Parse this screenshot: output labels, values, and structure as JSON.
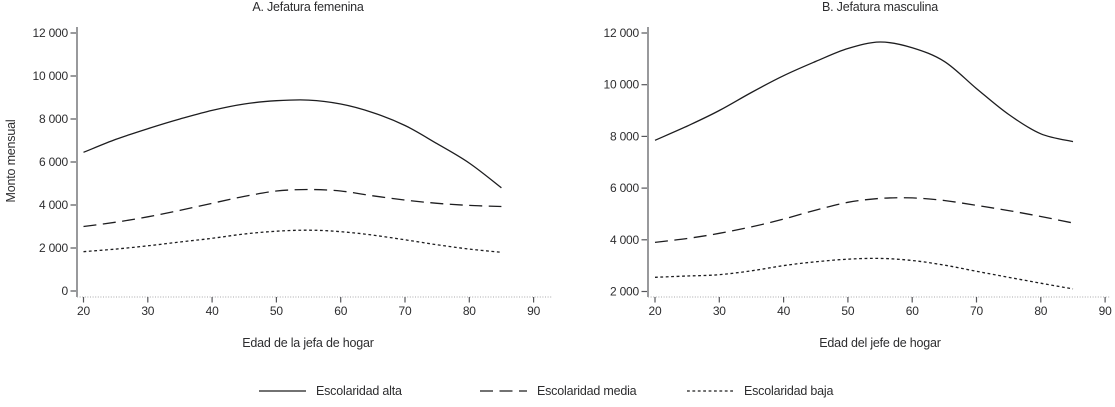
{
  "page": {
    "background": "#ffffff",
    "text_color": "#2d2d2f",
    "line_color": "#1d1d1f",
    "axis_color": "#55565a"
  },
  "chart_data": [
    {
      "type": "line",
      "title": "A. Jefatura femenina",
      "xlabel": "Edad de la jefa de hogar",
      "ylabel": "Monto mensual",
      "xlim": [
        20,
        90
      ],
      "x_ticks": [
        20,
        30,
        40,
        50,
        60,
        70,
        80,
        90
      ],
      "ylim": [
        0,
        12300
      ],
      "y_ticks": [
        0,
        2000,
        4000,
        6000,
        8000,
        10000,
        12000
      ],
      "y_tick_labels": [
        "0",
        "2 000",
        "4 000",
        "6 000",
        "8 000",
        "10 000",
        "12 000"
      ],
      "grid": false,
      "x": [
        20,
        25,
        30,
        35,
        40,
        45,
        50,
        55,
        60,
        65,
        70,
        75,
        80,
        85
      ],
      "series": [
        {
          "name": "Escolaridad alta",
          "style": "solid",
          "values": [
            6450,
            7050,
            7550,
            8000,
            8400,
            8700,
            8850,
            8880,
            8700,
            8300,
            7700,
            6850,
            5950,
            4800
          ]
        },
        {
          "name": "Escolaridad media",
          "style": "long-dash",
          "values": [
            3000,
            3200,
            3450,
            3750,
            4080,
            4400,
            4650,
            4720,
            4650,
            4430,
            4230,
            4080,
            3980,
            3930
          ]
        },
        {
          "name": "Escolaridad baja",
          "style": "short-dash",
          "values": [
            1830,
            1950,
            2100,
            2280,
            2450,
            2650,
            2780,
            2830,
            2760,
            2600,
            2380,
            2150,
            1950,
            1800
          ]
        }
      ]
    },
    {
      "type": "line",
      "title": "B. Jefatura masculina",
      "xlabel": "Edad del jefe de hogar",
      "ylabel": "",
      "xlim": [
        20,
        90
      ],
      "x_ticks": [
        20,
        30,
        40,
        50,
        60,
        70,
        80,
        90
      ],
      "ylim": [
        2000,
        12300
      ],
      "y_ticks": [
        2000,
        4000,
        6000,
        8000,
        10000,
        12000
      ],
      "y_tick_labels": [
        "2 000",
        "4 000",
        "6 000",
        "8 000",
        "10 000",
        "12 000"
      ],
      "grid": false,
      "x": [
        20,
        25,
        30,
        35,
        40,
        45,
        50,
        55,
        60,
        65,
        70,
        75,
        80,
        85
      ],
      "series": [
        {
          "name": "Escolaridad alta",
          "style": "solid",
          "values": [
            7850,
            8400,
            9000,
            9700,
            10350,
            10900,
            11400,
            11650,
            11430,
            10900,
            9850,
            8850,
            8100,
            7800
          ]
        },
        {
          "name": "Escolaridad media",
          "style": "long-dash",
          "values": [
            3900,
            4050,
            4250,
            4500,
            4800,
            5150,
            5450,
            5600,
            5620,
            5520,
            5330,
            5130,
            4900,
            4650
          ]
        },
        {
          "name": "Escolaridad baja",
          "style": "short-dash",
          "values": [
            2550,
            2600,
            2650,
            2800,
            3000,
            3150,
            3250,
            3280,
            3200,
            3020,
            2780,
            2550,
            2320,
            2100
          ]
        }
      ]
    }
  ],
  "legend": [
    {
      "label": "Escolaridad alta",
      "style": "solid"
    },
    {
      "label": "Escolaridad media",
      "style": "long-dash"
    },
    {
      "label": "Escolaridad baja",
      "style": "short-dash"
    }
  ]
}
